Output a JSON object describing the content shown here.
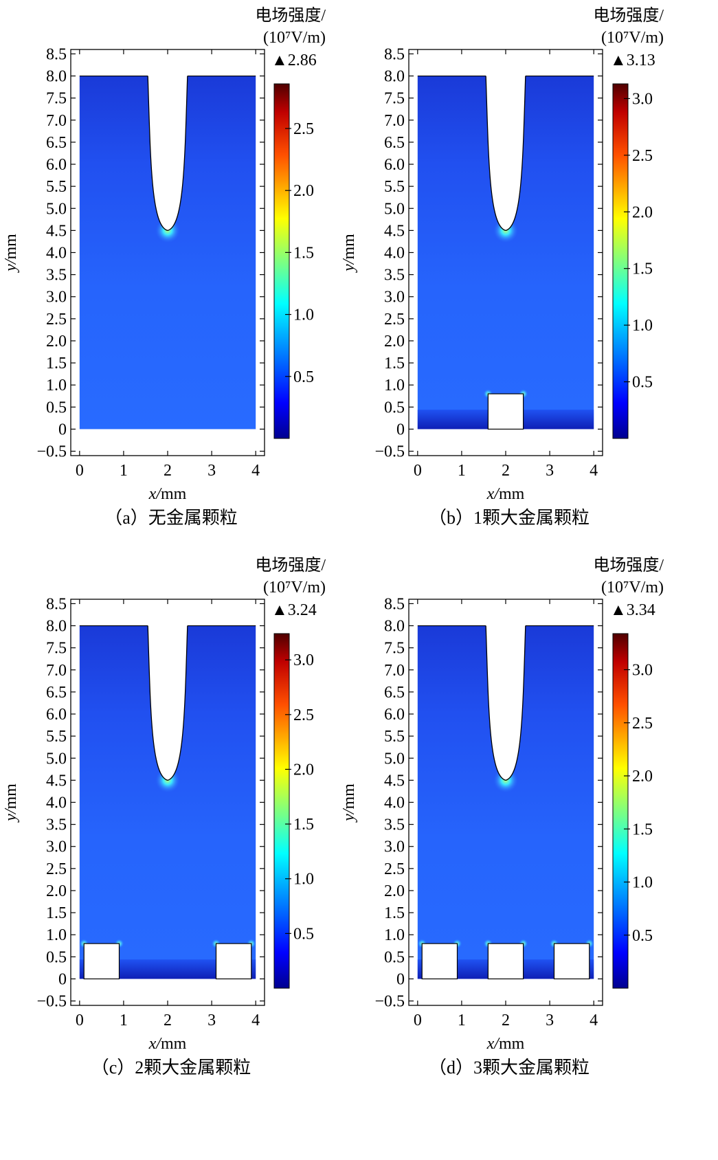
{
  "colorbar_title_line1": "电场强度/",
  "colorbar_title_line2": "(10⁷V/m)",
  "x_axis_label": "mm",
  "x_axis_var": "x",
  "y_axis_label": "mm",
  "y_axis_var": "y",
  "chart_data": [
    {
      "type": "heatmap",
      "caption": "（a）无金属颗粒",
      "max_value_label": "2.86",
      "colorbar_max": 2.86,
      "colorbar_ticks": [
        0.5,
        1.0,
        1.5,
        2.0,
        2.5
      ],
      "colorbar_tick_labels": [
        "0.5",
        "1.0",
        "1.5",
        "2.0",
        "2.5"
      ],
      "xlim": [
        -0.2,
        4.2
      ],
      "ylim": [
        -0.6,
        8.6
      ],
      "x_ticks": [
        0,
        1,
        2,
        3,
        4
      ],
      "x_tick_labels": [
        "0",
        "1",
        "2",
        "3",
        "4"
      ],
      "y_ticks": [
        -0.5,
        0,
        0.5,
        1.0,
        1.5,
        2.0,
        2.5,
        3.0,
        3.5,
        4.0,
        4.5,
        5.0,
        5.5,
        6.0,
        6.5,
        7.0,
        7.5,
        8.0,
        8.5
      ],
      "y_tick_labels": [
        "−0.5",
        "0",
        "0.5",
        "1.0",
        "1.5",
        "2.0",
        "2.5",
        "3.0",
        "3.5",
        "4.0",
        "4.5",
        "5.0",
        "5.5",
        "6.0",
        "6.5",
        "7.0",
        "7.5",
        "8.0",
        "8.5"
      ],
      "domain": {
        "x": [
          0,
          4
        ],
        "y": [
          0,
          8
        ]
      },
      "needle": {
        "tip_x": 2.0,
        "tip_y": 4.5,
        "top_left_x": 1.55,
        "top_right_x": 2.45,
        "top_y": 8.0
      },
      "particles": []
    },
    {
      "type": "heatmap",
      "caption": "（b）1颗大金属颗粒",
      "max_value_label": "3.13",
      "colorbar_max": 3.13,
      "colorbar_ticks": [
        0.5,
        1.0,
        1.5,
        2.0,
        2.5,
        3.0
      ],
      "colorbar_tick_labels": [
        "0.5",
        "1.0",
        "1.5",
        "2.0",
        "2.5",
        "3.0"
      ],
      "xlim": [
        -0.2,
        4.2
      ],
      "ylim": [
        -0.6,
        8.6
      ],
      "x_ticks": [
        0,
        1,
        2,
        3,
        4
      ],
      "x_tick_labels": [
        "0",
        "1",
        "2",
        "3",
        "4"
      ],
      "y_ticks": [
        -0.5,
        0,
        0.5,
        1.0,
        1.5,
        2.0,
        2.5,
        3.0,
        3.5,
        4.0,
        4.5,
        5.0,
        5.5,
        6.0,
        6.5,
        7.0,
        7.5,
        8.0,
        8.5
      ],
      "y_tick_labels": [
        "−0.5",
        "0",
        "0.5",
        "1.0",
        "1.5",
        "2.0",
        "2.5",
        "3.0",
        "3.5",
        "4.0",
        "4.5",
        "5.0",
        "5.5",
        "6.0",
        "6.5",
        "7.0",
        "7.5",
        "8.0",
        "8.5"
      ],
      "domain": {
        "x": [
          0,
          4
        ],
        "y": [
          0,
          8
        ]
      },
      "needle": {
        "tip_x": 2.0,
        "tip_y": 4.5,
        "top_left_x": 1.55,
        "top_right_x": 2.45,
        "top_y": 8.0
      },
      "particles": [
        {
          "x0": 1.6,
          "x1": 2.4,
          "height": 0.8
        }
      ]
    },
    {
      "type": "heatmap",
      "caption": "（c）2颗大金属颗粒",
      "max_value_label": "3.24",
      "colorbar_max": 3.24,
      "colorbar_ticks": [
        0.5,
        1.0,
        1.5,
        2.0,
        2.5,
        3.0
      ],
      "colorbar_tick_labels": [
        "0.5",
        "1.0",
        "1.5",
        "2.0",
        "2.5",
        "3.0"
      ],
      "xlim": [
        -0.2,
        4.2
      ],
      "ylim": [
        -0.6,
        8.6
      ],
      "x_ticks": [
        0,
        1,
        2,
        3,
        4
      ],
      "x_tick_labels": [
        "0",
        "1",
        "2",
        "3",
        "4"
      ],
      "y_ticks": [
        -0.5,
        0,
        0.5,
        1.0,
        1.5,
        2.0,
        2.5,
        3.0,
        3.5,
        4.0,
        4.5,
        5.0,
        5.5,
        6.0,
        6.5,
        7.0,
        7.5,
        8.0,
        8.5
      ],
      "y_tick_labels": [
        "−0.5",
        "0",
        "0.5",
        "1.0",
        "1.5",
        "2.0",
        "2.5",
        "3.0",
        "3.5",
        "4.0",
        "4.5",
        "5.0",
        "5.5",
        "6.0",
        "6.5",
        "7.0",
        "7.5",
        "8.0",
        "8.5"
      ],
      "domain": {
        "x": [
          0,
          4
        ],
        "y": [
          0,
          8
        ]
      },
      "needle": {
        "tip_x": 2.0,
        "tip_y": 4.5,
        "top_left_x": 1.55,
        "top_right_x": 2.45,
        "top_y": 8.0
      },
      "particles": [
        {
          "x0": 0.1,
          "x1": 0.9,
          "height": 0.8
        },
        {
          "x0": 3.1,
          "x1": 3.9,
          "height": 0.8
        }
      ]
    },
    {
      "type": "heatmap",
      "caption": "（d）3颗大金属颗粒",
      "max_value_label": "3.34",
      "colorbar_max": 3.34,
      "colorbar_ticks": [
        0.5,
        1.0,
        1.5,
        2.0,
        2.5,
        3.0
      ],
      "colorbar_tick_labels": [
        "0.5",
        "1.0",
        "1.5",
        "2.0",
        "2.5",
        "3.0"
      ],
      "xlim": [
        -0.2,
        4.2
      ],
      "ylim": [
        -0.6,
        8.6
      ],
      "x_ticks": [
        0,
        1,
        2,
        3,
        4
      ],
      "x_tick_labels": [
        "0",
        "1",
        "2",
        "3",
        "4"
      ],
      "y_ticks": [
        -0.5,
        0,
        0.5,
        1.0,
        1.5,
        2.0,
        2.5,
        3.0,
        3.5,
        4.0,
        4.5,
        5.0,
        5.5,
        6.0,
        6.5,
        7.0,
        7.5,
        8.0,
        8.5
      ],
      "y_tick_labels": [
        "−0.5",
        "0",
        "0.5",
        "1.0",
        "1.5",
        "2.0",
        "2.5",
        "3.0",
        "3.5",
        "4.0",
        "4.5",
        "5.0",
        "5.5",
        "6.0",
        "6.5",
        "7.0",
        "7.5",
        "8.0",
        "8.5"
      ],
      "domain": {
        "x": [
          0,
          4
        ],
        "y": [
          0,
          8
        ]
      },
      "needle": {
        "tip_x": 2.0,
        "tip_y": 4.5,
        "top_left_x": 1.55,
        "top_right_x": 2.45,
        "top_y": 8.0
      },
      "particles": [
        {
          "x0": 0.1,
          "x1": 0.9,
          "height": 0.8
        },
        {
          "x0": 1.6,
          "x1": 2.4,
          "height": 0.8
        },
        {
          "x0": 3.1,
          "x1": 3.9,
          "height": 0.8
        }
      ]
    }
  ]
}
